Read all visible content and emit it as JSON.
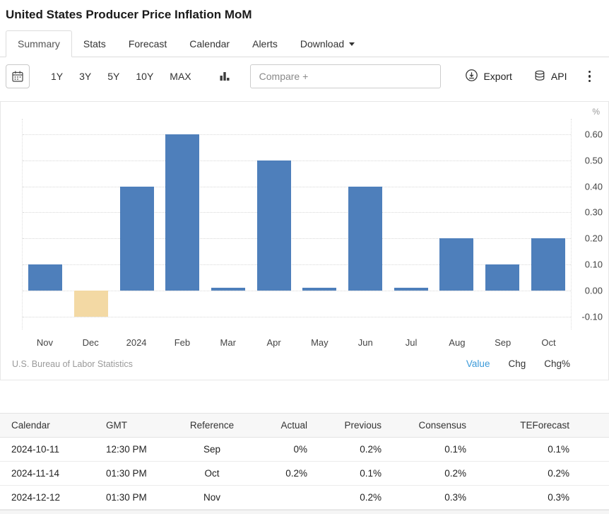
{
  "page": {
    "title": "United States Producer Price Inflation MoM"
  },
  "tabs": [
    {
      "label": "Summary",
      "active": true,
      "has_caret": false
    },
    {
      "label": "Stats",
      "active": false,
      "has_caret": false
    },
    {
      "label": "Forecast",
      "active": false,
      "has_caret": false
    },
    {
      "label": "Calendar",
      "active": false,
      "has_caret": false
    },
    {
      "label": "Alerts",
      "active": false,
      "has_caret": false
    },
    {
      "label": "Download",
      "active": false,
      "has_caret": true
    }
  ],
  "toolbar": {
    "ranges": [
      "1Y",
      "3Y",
      "5Y",
      "10Y",
      "MAX"
    ],
    "compare_placeholder": "Compare +",
    "export_label": "Export",
    "api_label": "API",
    "icons": [
      "calendar-icon",
      "bar-chart-icon",
      "export-icon",
      "api-icon",
      "kebab-menu-icon"
    ]
  },
  "chart_data": {
    "type": "bar",
    "title": "United States Producer Price Inflation MoM",
    "unit": "%",
    "categories": [
      "Nov",
      "Dec",
      "2024",
      "Feb",
      "Mar",
      "Apr",
      "May",
      "Jun",
      "Jul",
      "Aug",
      "Sep",
      "Oct"
    ],
    "values": [
      0.1,
      -0.1,
      0.4,
      0.6,
      0.01,
      0.5,
      0.01,
      0.4,
      0.01,
      0.2,
      0.1,
      0.2
    ],
    "ylim": [
      -0.15,
      0.66
    ],
    "yticks": [
      {
        "label": "0.60",
        "value": 0.6
      },
      {
        "label": "0.50",
        "value": 0.5
      },
      {
        "label": "0.40",
        "value": 0.4
      },
      {
        "label": "0.30",
        "value": 0.3
      },
      {
        "label": "0.20",
        "value": 0.2
      },
      {
        "label": "0.10",
        "value": 0.1
      },
      {
        "label": "0.00",
        "value": 0.0
      },
      {
        "label": "-0.10",
        "value": -0.1
      }
    ],
    "grid": "dotted-horizontal",
    "legend": "none",
    "bar_color": "#4e7fbb",
    "negative_bar_color": "#f3d9a4",
    "source": "U.S. Bureau of Labor Statistics"
  },
  "chart_footer": {
    "source": "U.S. Bureau of Labor Statistics",
    "views": [
      {
        "label": "Value",
        "active": true
      },
      {
        "label": "Chg",
        "active": false
      },
      {
        "label": "Chg%",
        "active": false
      }
    ]
  },
  "table": {
    "headers": [
      "Calendar",
      "GMT",
      "Reference",
      "Actual",
      "Previous",
      "Consensus",
      "TEForecast"
    ],
    "column_alignments": [
      "left",
      "left",
      "center",
      "right",
      "right",
      "right",
      "right"
    ],
    "rows": [
      [
        "2024-10-11",
        "12:30 PM",
        "Sep",
        "0%",
        "0.2%",
        "0.1%",
        "0.1%"
      ],
      [
        "2024-11-14",
        "01:30 PM",
        "Oct",
        "0.2%",
        "0.1%",
        "0.2%",
        "0.2%"
      ],
      [
        "2024-12-12",
        "01:30 PM",
        "Nov",
        "",
        "0.2%",
        "0.3%",
        "0.3%"
      ]
    ]
  }
}
